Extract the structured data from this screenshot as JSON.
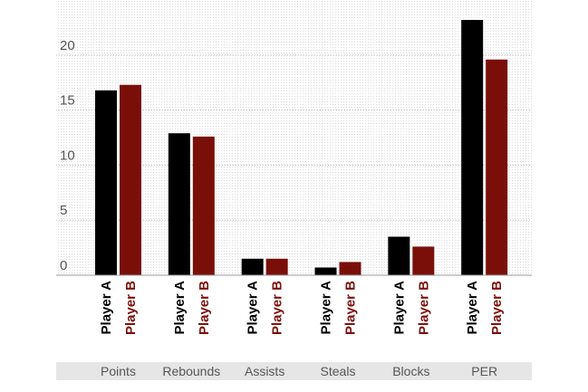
{
  "chart_data": {
    "type": "bar",
    "categories": [
      "Points",
      "Rebounds",
      "Assists",
      "Steals",
      "Blocks",
      "PER"
    ],
    "series": [
      {
        "name": "Player A",
        "color": "#000000",
        "values": [
          16.8,
          12.9,
          1.5,
          0.7,
          3.5,
          23.2
        ]
      },
      {
        "name": "Player B",
        "color": "#7a0f0a",
        "values": [
          17.3,
          12.6,
          1.5,
          1.2,
          2.6,
          19.6
        ]
      }
    ],
    "yticks": [
      0,
      5,
      10,
      15,
      20
    ],
    "ylim": [
      0,
      23.2
    ],
    "grid": true,
    "legend": "per-bar rotated labels",
    "title": "",
    "xlabel": "",
    "ylabel": ""
  }
}
